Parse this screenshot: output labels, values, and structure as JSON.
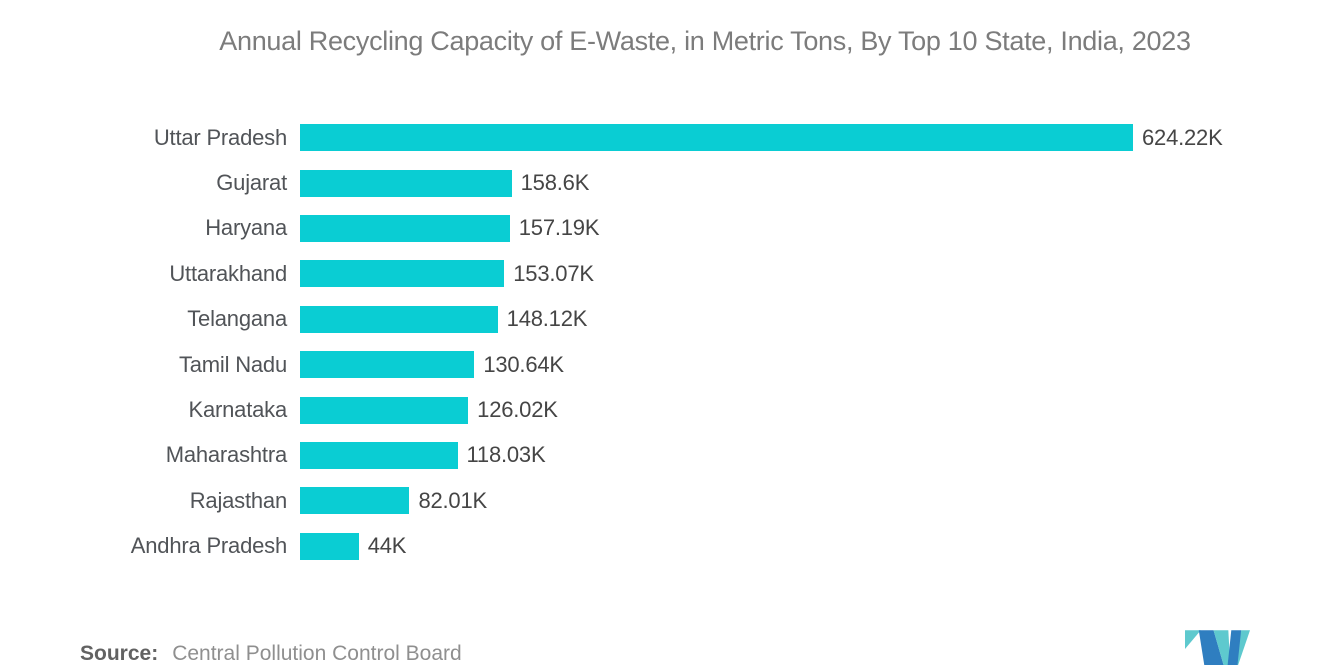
{
  "title": "Annual Recycling Capacity of E-Waste, in Metric Tons, By Top 10 State, India, 2023",
  "source": {
    "label": "Source:",
    "value": "Central Pollution Control Board"
  },
  "colors": {
    "bar": "#0acdd3",
    "logo_blue": "#2f7ec0",
    "logo_teal": "#5ec9ce"
  },
  "logo_name": "mordor-intelligence-logo",
  "chart_data": {
    "type": "bar",
    "orientation": "horizontal",
    "title": "Annual Recycling Capacity of E-Waste, in Metric Tons, By Top 10 State, India, 2023",
    "xlabel": "",
    "ylabel": "",
    "unit": "Metric Tons (thousands)",
    "axis_max": 624.22,
    "grid": false,
    "legend": false,
    "categories": [
      "Uttar Pradesh",
      "Gujarat",
      "Haryana",
      "Uttarakhand",
      "Telangana",
      "Tamil Nadu",
      "Karnataka",
      "Maharashtra",
      "Rajasthan",
      "Andhra Pradesh"
    ],
    "values": [
      624.22,
      158.6,
      157.19,
      153.07,
      148.12,
      130.64,
      126.02,
      118.03,
      82.01,
      44
    ],
    "value_labels": [
      "624.22K",
      "158.6K",
      "157.19K",
      "153.07K",
      "148.12K",
      "130.64K",
      "126.02K",
      "118.03K",
      "82.01K",
      "44K"
    ]
  }
}
